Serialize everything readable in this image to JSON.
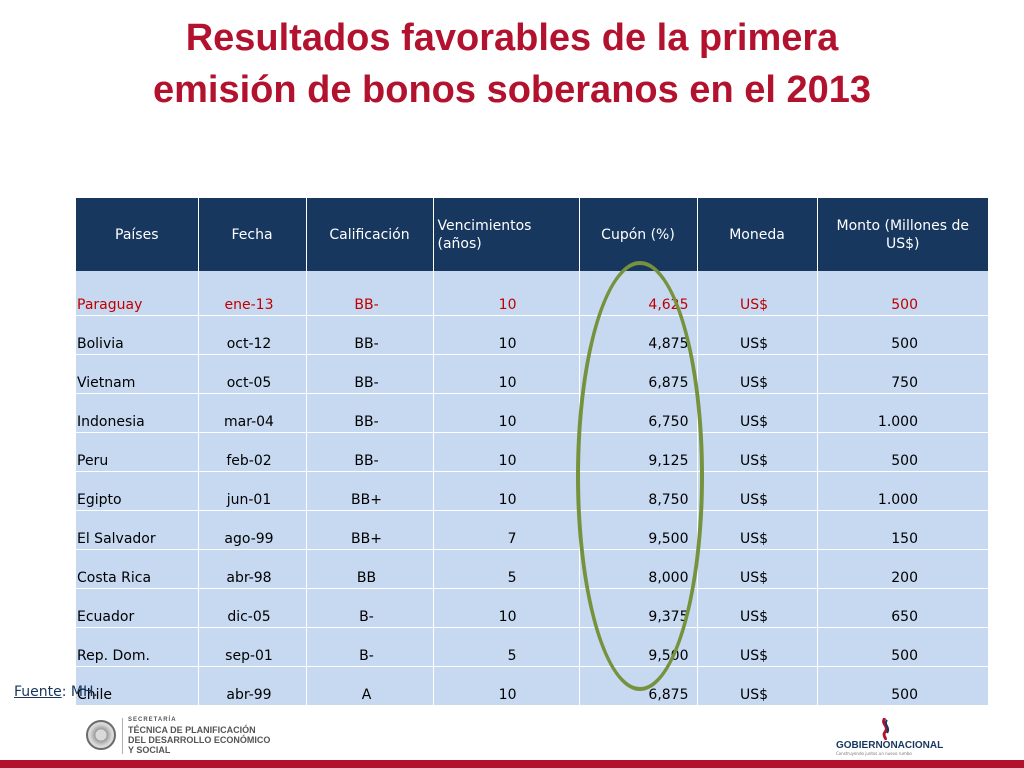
{
  "title": {
    "line1": "Resultados favorables de la primera",
    "line2": "emisión de bonos soberanos en el 2013"
  },
  "table": {
    "headers": [
      "Países",
      "Fecha",
      "Calificación",
      "Vencimientos (años)",
      "Cupón (%)",
      "Moneda",
      "Monto (Millones de US$)"
    ],
    "rows": [
      [
        "Paraguay",
        "ene-13",
        "BB-",
        "10",
        "4,625",
        "US$",
        "500"
      ],
      [
        "Bolivia",
        "oct-12",
        "BB-",
        "10",
        "4,875",
        "US$",
        "500"
      ],
      [
        "Vietnam",
        "oct-05",
        "BB-",
        "10",
        "6,875",
        "US$",
        "750"
      ],
      [
        "Indonesia",
        "mar-04",
        "BB-",
        "10",
        "6,750",
        "US$",
        "1.000"
      ],
      [
        "Peru",
        "feb-02",
        "BB-",
        "10",
        "9,125",
        "US$",
        "500"
      ],
      [
        "Egipto",
        "jun-01",
        "BB+",
        "10",
        "8,750",
        "US$",
        "1.000"
      ],
      [
        "El Salvador",
        "ago-99",
        "BB+",
        "7",
        "9,500",
        "US$",
        "150"
      ],
      [
        "Costa Rica",
        "abr-98",
        "BB",
        "5",
        "8,000",
        "US$",
        "200"
      ],
      [
        "Ecuador",
        "dic-05",
        "B-",
        "10",
        "9,375",
        "US$",
        "650"
      ],
      [
        "Rep. Dom.",
        "sep-01",
        "B-",
        "5",
        "9,500",
        "US$",
        "500"
      ],
      [
        "Chile",
        "abr-99",
        "A",
        "10",
        "6,875",
        "US$",
        "500"
      ]
    ]
  },
  "source": {
    "label": "Fuente",
    "text": ": MH."
  },
  "footer": {
    "org_small": "SECRETARÍA",
    "org_line1": "TÉCNICA DE PLANIFICACIÓN",
    "org_line2": "DEL DESARROLLO ECONÓMICO",
    "org_line3": "Y SOCIAL",
    "gov_name_1": "GOBIERNO",
    "gov_name_2": "NACIONAL",
    "gov_tagline": "Construyendo juntos un nuevo rumbo"
  },
  "colors": {
    "title": "#b3122e",
    "header_bg": "#17375e",
    "row_bg": "#c6d9f1",
    "highlight_text": "#c00000",
    "ellipse": "#76923c"
  }
}
